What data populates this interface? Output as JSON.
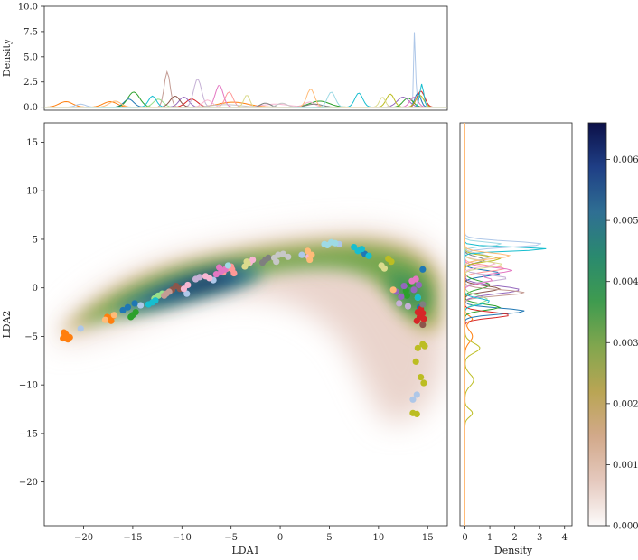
{
  "chart_data": {
    "type": "scatter",
    "title": "",
    "main": {
      "xlabel": "LDA1",
      "ylabel": "LDA2",
      "xlim": [
        -24,
        17
      ],
      "ylim": [
        -24.5,
        17
      ],
      "xticks": [
        -20,
        -15,
        -10,
        -5,
        0,
        5,
        10,
        15
      ],
      "yticks": [
        -20,
        -15,
        -10,
        -5,
        0,
        5,
        10,
        15
      ],
      "xtick_labels": [
        "−20",
        "−15",
        "−10",
        "−5",
        "0",
        "5",
        "10",
        "15"
      ],
      "ytick_labels": [
        "−20",
        "−15",
        "−10",
        "−5",
        "0",
        "5",
        "10",
        "15"
      ],
      "background": "2D kernel density estimate of all points",
      "grid": false
    },
    "top_marginal": {
      "ylabel": "Density",
      "ylim": [
        -0.3,
        10
      ],
      "yticks": [
        0.0,
        2.5,
        5.0,
        7.5,
        10.0
      ],
      "ytick_labels": [
        "0.0",
        "2.5",
        "5.0",
        "7.5",
        "10.0"
      ]
    },
    "right_marginal": {
      "xlabel": "Density",
      "xlim": [
        -0.2,
        4.3
      ],
      "xticks": [
        0,
        1,
        2,
        3,
        4
      ],
      "xtick_labels": [
        "0",
        "1",
        "2",
        "3",
        "4"
      ]
    },
    "colorbar": {
      "ticks": [
        0.0,
        0.001,
        0.002,
        0.003,
        0.004,
        0.005,
        0.006
      ],
      "tick_labels": [
        "0.000",
        "0.001",
        "0.002",
        "0.003",
        "0.004",
        "0.005",
        "0.006"
      ],
      "range": [
        0,
        0.0066
      ],
      "colormap": [
        "#fcfafa",
        "#e5c9be",
        "#d2a98a",
        "#b9a554",
        "#82a64e",
        "#3f9b4f",
        "#2a8a6e",
        "#2f6f93",
        "#1f3f86",
        "#0c1048"
      ]
    },
    "series": [
      {
        "color": "#ff7f0e",
        "points": [
          [
            -22.1,
            -5.2
          ],
          [
            -21.8,
            -4.8
          ],
          [
            -21.4,
            -5.1
          ],
          [
            -22.0,
            -4.6
          ],
          [
            -21.6,
            -5.3
          ],
          [
            -21.9,
            -5.0
          ],
          [
            -17.6,
            -3.0
          ],
          [
            -17.2,
            -3.4
          ],
          [
            -17.0,
            -2.9
          ],
          [
            -17.4,
            -3.2
          ]
        ],
        "kde_x": [
          [
            -21.8,
            0.7,
            0.55
          ],
          [
            -17.3,
            0.7,
            0.55
          ],
          [
            -4.8,
            1.5,
            0.5
          ]
        ],
        "kde_y": [
          [
            -5.0,
            0.6,
            0.3
          ],
          [
            -3.2,
            0.3,
            0.3
          ]
        ]
      },
      {
        "color": "#aec7e8",
        "points": [
          [
            -20.3,
            -4.2
          ],
          [
            -14.2,
            -1.8
          ],
          [
            -9.5,
            -0.6
          ],
          [
            -6.8,
            0.8
          ],
          [
            2.2,
            3.4
          ],
          [
            6.0,
            4.5
          ],
          [
            13.5,
            -11.5
          ],
          [
            13.9,
            -11.0
          ]
        ],
        "kde_x": [
          [
            -20.3,
            0.5,
            0.3
          ],
          [
            13.7,
            0.08,
            9.4
          ]
        ],
        "kde_y": [
          [
            4.5,
            0.3,
            3.1
          ]
        ]
      },
      {
        "color": "#1f77b4",
        "points": [
          [
            -16.0,
            -2.3
          ],
          [
            -15.5,
            -2.0
          ],
          [
            -14.8,
            -1.6
          ],
          [
            8.2,
            3.9
          ],
          [
            8.6,
            3.5
          ],
          [
            14.5,
            1.9
          ],
          [
            14.2,
            -2.0
          ]
        ],
        "kde_x": [
          [
            -15.4,
            0.5,
            0.8
          ],
          [
            14.0,
            0.3,
            1.4
          ]
        ],
        "kde_y": [
          [
            -2.4,
            0.3,
            2.4
          ],
          [
            1.5,
            0.3,
            1.4
          ]
        ]
      },
      {
        "color": "#2ca02c",
        "points": [
          [
            -15.0,
            -2.8
          ],
          [
            -14.7,
            -2.5
          ],
          [
            -15.2,
            -3.0
          ],
          [
            12.8,
            -0.3
          ],
          [
            13.2,
            0.4
          ],
          [
            12.9,
            -0.8
          ]
        ],
        "kde_x": [
          [
            -14.9,
            0.6,
            1.5
          ],
          [
            13.0,
            0.5,
            0.9
          ],
          [
            4.0,
            1.0,
            0.6
          ]
        ],
        "kde_y": [
          [
            -2.0,
            0.3,
            1.4
          ],
          [
            0.3,
            0.4,
            1.0
          ]
        ]
      },
      {
        "color": "#98df8a",
        "points": [
          [
            -12.8,
            -1.1
          ],
          [
            -12.4,
            -0.8
          ],
          [
            -12.0,
            -0.6
          ],
          [
            14.0,
            -1.0
          ]
        ],
        "kde_x": [
          [
            -12.4,
            0.5,
            0.8
          ]
        ],
        "kde_y": [
          [
            -1.2,
            0.4,
            0.9
          ]
        ]
      },
      {
        "color": "#d62728",
        "points": [
          [
            14.2,
            -3.0
          ],
          [
            14.5,
            -2.6
          ],
          [
            13.9,
            -3.4
          ],
          [
            14.6,
            -3.2
          ],
          [
            14.3,
            -2.2
          ],
          [
            14.0,
            -2.5
          ]
        ],
        "kde_x": [
          [
            14.3,
            0.4,
            1.6
          ],
          [
            -9.0,
            0.6,
            0.8
          ]
        ],
        "kde_y": [
          [
            -2.8,
            0.3,
            1.8
          ]
        ]
      },
      {
        "color": "#ff9896",
        "points": [
          [
            -5.8,
            1.6
          ],
          [
            -5.4,
            2.0
          ],
          [
            -5.0,
            2.2
          ],
          [
            -4.7,
            1.5
          ],
          [
            -4.9,
            1.9
          ]
        ],
        "kde_x": [
          [
            -5.2,
            0.4,
            1.5
          ]
        ],
        "kde_y": [
          [
            2.0,
            0.3,
            1.6
          ]
        ]
      },
      {
        "color": "#9467bd",
        "points": [
          [
            11.8,
            -0.4
          ],
          [
            12.3,
            -0.9
          ],
          [
            12.6,
            0.2
          ],
          [
            13.6,
            -0.2
          ],
          [
            14.1,
            0.3
          ]
        ],
        "kde_x": [
          [
            12.5,
            0.6,
            1.0
          ],
          [
            -9.8,
            0.5,
            1.0
          ]
        ],
        "kde_y": [
          [
            -0.2,
            0.4,
            2.2
          ]
        ]
      },
      {
        "color": "#c5b0d5",
        "points": [
          [
            -8.6,
            0.9
          ],
          [
            -8.2,
            1.1
          ],
          [
            12.1,
            -1.6
          ],
          [
            13.0,
            -1.9
          ]
        ],
        "kde_x": [
          [
            -8.4,
            0.4,
            2.8
          ]
        ],
        "kde_y": [
          [
            1.0,
            0.3,
            1.7
          ]
        ]
      },
      {
        "color": "#8c564b",
        "points": [
          [
            -11.0,
            -0.2
          ],
          [
            -10.6,
            0.2
          ],
          [
            -10.2,
            -0.1
          ],
          [
            14.5,
            -3.8
          ]
        ],
        "kde_x": [
          [
            -10.7,
            0.5,
            1.1
          ]
        ],
        "kde_y": [
          [
            -0.1,
            0.3,
            1.4
          ]
        ]
      },
      {
        "color": "#c49c94",
        "points": [
          [
            -11.8,
            -0.8
          ],
          [
            -11.3,
            -0.4
          ],
          [
            -11.6,
            -0.6
          ]
        ],
        "kde_x": [
          [
            -11.5,
            0.3,
            3.5
          ]
        ],
        "kde_y": [
          [
            -0.5,
            0.3,
            2.4
          ]
        ]
      },
      {
        "color": "#e377c2",
        "points": [
          [
            -6.5,
            1.4
          ],
          [
            -6.0,
            1.7
          ],
          [
            -5.6,
            1.9
          ],
          [
            -6.2,
            2.1
          ],
          [
            13.4,
            0.7
          ],
          [
            13.8,
            0.9
          ]
        ],
        "kde_x": [
          [
            -6.2,
            0.4,
            2.2
          ],
          [
            13.6,
            0.4,
            1.0
          ]
        ],
        "kde_y": [
          [
            1.8,
            0.3,
            1.9
          ],
          [
            0.8,
            0.3,
            1.1
          ]
        ]
      },
      {
        "color": "#f7b6d2",
        "points": [
          [
            -9.8,
            -0.1
          ],
          [
            -9.4,
            0.3
          ],
          [
            -7.6,
            1.2
          ],
          [
            -7.2,
            1.0
          ],
          [
            -3.1,
            2.6
          ],
          [
            -2.8,
            2.9
          ],
          [
            2.9,
            3.2
          ]
        ],
        "kde_x": [
          [
            -7.4,
            0.5,
            0.7
          ],
          [
            -0.5,
            1.4,
            0.3
          ],
          [
            3.0,
            0.5,
            0.5
          ]
        ],
        "kde_y": [
          [
            2.5,
            0.3,
            1.2
          ]
        ]
      },
      {
        "color": "#7f7f7f",
        "points": [
          [
            -1.8,
            2.6
          ],
          [
            -1.5,
            2.9
          ],
          [
            -1.2,
            3.1
          ],
          [
            14.5,
            -1.7
          ]
        ],
        "kde_x": [
          [
            -1.5,
            0.5,
            0.4
          ],
          [
            3.5,
            0.8,
            0.3
          ]
        ],
        "kde_y": [
          [
            2.9,
            0.3,
            0.8
          ]
        ]
      },
      {
        "color": "#c7c7c7",
        "points": [
          [
            -0.6,
            3.1
          ],
          [
            -0.2,
            3.4
          ],
          [
            0.3,
            3.5
          ],
          [
            0.8,
            3.2
          ],
          [
            -0.4,
            2.7
          ]
        ],
        "kde_x": [
          [
            0.2,
            0.5,
            0.4
          ],
          [
            -5.5,
            1.5,
            0.25
          ]
        ],
        "kde_y": [
          [
            3.2,
            0.3,
            1.0
          ]
        ]
      },
      {
        "color": "#bcbd22",
        "points": [
          [
            14.0,
            -6.2
          ],
          [
            14.5,
            -5.8
          ],
          [
            13.8,
            -7.6
          ],
          [
            14.3,
            -9.2
          ],
          [
            14.6,
            -9.8
          ],
          [
            13.5,
            -12.9
          ],
          [
            13.9,
            -13.0
          ],
          [
            14.7,
            -6.0
          ],
          [
            11.0,
            3.0
          ],
          [
            11.3,
            2.7
          ]
        ],
        "kde_x": [
          [
            14.2,
            0.4,
            1.2
          ],
          [
            11.2,
            0.4,
            1.3
          ]
        ],
        "kde_y": [
          [
            -6.2,
            0.5,
            0.6
          ],
          [
            -9.5,
            0.6,
            0.35
          ],
          [
            -12.9,
            0.4,
            0.3
          ],
          [
            3.0,
            0.3,
            1.4
          ]
        ]
      },
      {
        "color": "#dbdb8d",
        "points": [
          [
            -3.6,
            2.2
          ],
          [
            -3.3,
            2.5
          ],
          [
            -3.4,
            2.7
          ],
          [
            10.3,
            2.3
          ],
          [
            10.6,
            2.0
          ]
        ],
        "kde_x": [
          [
            -3.4,
            0.3,
            1.2
          ],
          [
            10.4,
            0.3,
            1.0
          ]
        ],
        "kde_y": [
          [
            2.4,
            0.3,
            1.5
          ]
        ]
      },
      {
        "color": "#17becf",
        "points": [
          [
            -13.4,
            -1.7
          ],
          [
            -13.0,
            -1.5
          ],
          [
            -12.7,
            -1.3
          ],
          [
            7.5,
            4.2
          ],
          [
            7.9,
            3.8
          ],
          [
            8.3,
            4.0
          ],
          [
            9.0,
            3.3
          ],
          [
            14.0,
            -1.0
          ]
        ],
        "kde_x": [
          [
            -13.0,
            0.4,
            1.1
          ],
          [
            8.0,
            0.4,
            1.4
          ],
          [
            14.4,
            0.2,
            2.3
          ]
        ],
        "kde_y": [
          [
            4.0,
            0.2,
            3.3
          ],
          [
            -1.4,
            0.3,
            1.0
          ]
        ]
      },
      {
        "color": "#9edae5",
        "points": [
          [
            -5.3,
            2.3
          ],
          [
            4.8,
            4.4
          ],
          [
            5.2,
            4.7
          ],
          [
            5.6,
            4.6
          ],
          [
            4.5,
            4.5
          ]
        ],
        "kde_x": [
          [
            5.2,
            0.4,
            1.5
          ]
        ],
        "kde_y": [
          [
            4.5,
            0.2,
            1.5
          ]
        ]
      },
      {
        "color": "#ffbb78",
        "points": [
          [
            -17.8,
            -3.3
          ],
          [
            -16.9,
            -2.8
          ],
          [
            2.8,
            3.8
          ],
          [
            3.2,
            3.4
          ],
          [
            3.0,
            2.9
          ],
          [
            11.5,
            -0.2
          ]
        ],
        "kde_x": [
          [
            3.1,
            0.4,
            1.8
          ],
          [
            -16.8,
            0.6,
            0.6
          ]
        ],
        "kde_y": [
          [
            3.3,
            0.3,
            1.8
          ]
        ]
      }
    ]
  }
}
